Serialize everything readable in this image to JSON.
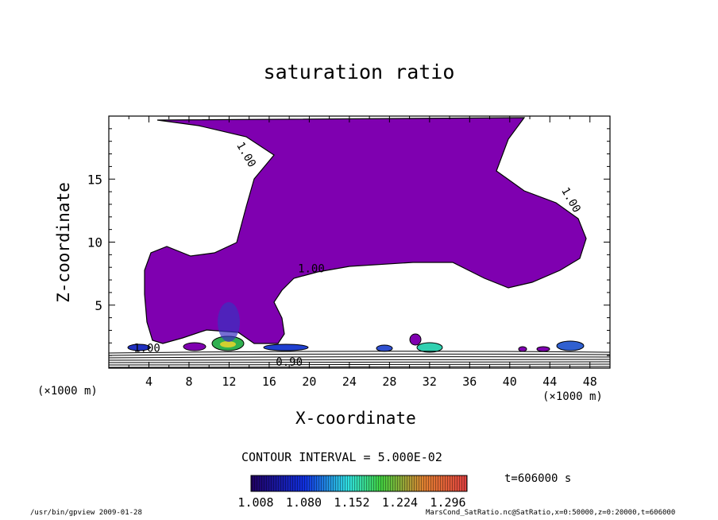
{
  "chart_data": {
    "type": "contour",
    "title": "saturation ratio",
    "xlabel": "X-coordinate",
    "ylabel": "Z-coordinate",
    "x_unit": "(×1000 m)",
    "x_ticks": [
      4,
      8,
      12,
      16,
      20,
      24,
      28,
      32,
      36,
      40,
      44,
      48
    ],
    "y_ticks": [
      5,
      10,
      15
    ],
    "xlim": [
      0,
      50
    ],
    "ylim": [
      0,
      20
    ],
    "contour_labels": [
      "1.00",
      "1.00",
      "1.00",
      "1.00",
      "0.90"
    ],
    "contour_interval": "CONTOUR INTERVAL = 5.000E-02",
    "colorbar_ticks": [
      "1.008",
      "1.080",
      "1.152",
      "1.224",
      "1.296"
    ],
    "time": "t=606000 s",
    "fill_color": "#7f00b0",
    "grid": false
  },
  "footer": {
    "left": "/usr/bin/gpview   2009-01-28",
    "right": "MarsCond_SatRatio.nc@SatRatio,x=0:50000,z=0:20000,t=606000"
  }
}
